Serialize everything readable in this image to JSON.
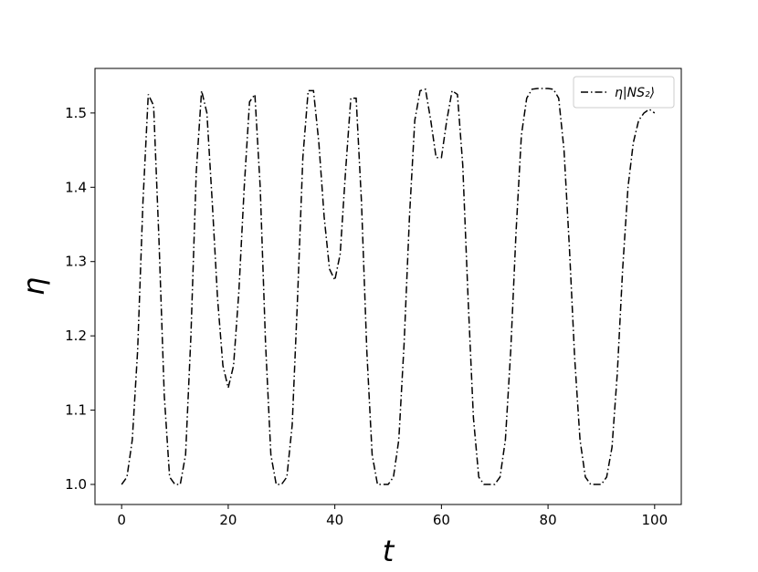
{
  "chart_data": {
    "type": "line",
    "xlabel": "t",
    "ylabel": "η",
    "x": [
      0,
      1,
      2,
      3,
      4,
      5,
      6,
      7,
      8,
      9,
      10,
      11,
      12,
      13,
      14,
      15,
      16,
      17,
      18,
      19,
      20,
      21,
      22,
      23,
      24,
      25,
      26,
      27,
      28,
      29,
      30,
      31,
      32,
      33,
      34,
      35,
      36,
      37,
      38,
      39,
      40,
      41,
      42,
      43,
      44,
      45,
      46,
      47,
      48,
      49,
      50,
      51,
      52,
      53,
      54,
      55,
      56,
      57,
      58,
      59,
      60,
      61,
      62,
      63,
      64,
      65,
      66,
      67,
      68,
      69,
      70,
      71,
      72,
      73,
      74,
      75,
      76,
      77,
      78,
      79,
      80,
      81,
      82,
      83,
      84,
      85,
      86,
      87,
      88,
      89,
      90,
      91,
      92,
      93,
      94,
      95,
      96,
      97,
      98,
      99,
      100
    ],
    "series": [
      {
        "name": "η|NS₂⟩",
        "color": "#000000",
        "values": [
          1.0,
          1.01,
          1.06,
          1.18,
          1.38,
          1.525,
          1.51,
          1.33,
          1.12,
          1.01,
          1.0,
          1.0,
          1.04,
          1.2,
          1.42,
          1.53,
          1.5,
          1.38,
          1.25,
          1.16,
          1.13,
          1.16,
          1.26,
          1.4,
          1.515,
          1.525,
          1.4,
          1.19,
          1.04,
          1.0,
          1.0,
          1.01,
          1.08,
          1.25,
          1.44,
          1.53,
          1.53,
          1.46,
          1.36,
          1.29,
          1.275,
          1.31,
          1.42,
          1.52,
          1.52,
          1.38,
          1.18,
          1.04,
          1.0,
          1.0,
          1.0,
          1.01,
          1.06,
          1.19,
          1.36,
          1.49,
          1.53,
          1.532,
          1.49,
          1.44,
          1.44,
          1.49,
          1.53,
          1.525,
          1.43,
          1.25,
          1.09,
          1.01,
          1.0,
          1.0,
          1.0,
          1.01,
          1.06,
          1.18,
          1.34,
          1.47,
          1.52,
          1.532,
          1.533,
          1.533,
          1.533,
          1.532,
          1.52,
          1.45,
          1.32,
          1.17,
          1.06,
          1.01,
          1.0,
          1.0,
          1.0,
          1.01,
          1.05,
          1.15,
          1.29,
          1.4,
          1.46,
          1.49,
          1.5,
          1.505,
          1.5
        ]
      }
    ],
    "xlim": [
      -5,
      105
    ],
    "xticks": [
      0,
      20,
      40,
      60,
      80,
      100
    ],
    "ylim": [
      0.973,
      1.56
    ],
    "yticks": [
      {
        "value": 1,
        "label": "1.0"
      },
      1.1,
      1.2,
      1.3,
      1.4,
      1.5
    ],
    "grid": false,
    "legend": "upper right"
  }
}
